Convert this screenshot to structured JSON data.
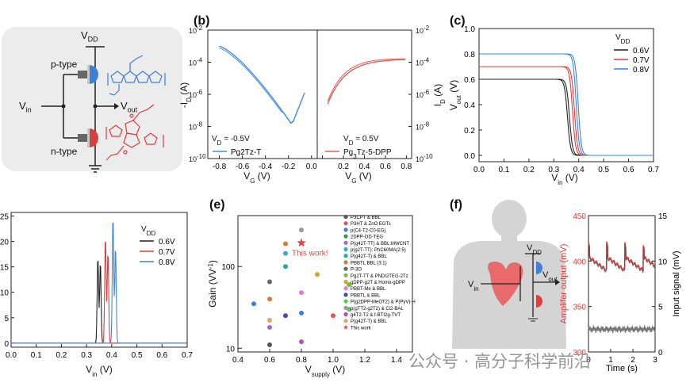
{
  "panel_a": {
    "vdd": "V",
    "vdd_sub": "DD",
    "ptype": "p-type",
    "ntype": "n-type",
    "vin": "V",
    "vin_sub": "in",
    "vout": "V",
    "vout_sub": "out"
  },
  "panel_b": {
    "label": "(b)",
    "left_legend": "Pg2Tz-T",
    "right_legend": "Pg",
    "right_legend_sub": "3",
    "right_legend_rest": "Tz-5-DPP",
    "left_vd": "V",
    "left_vd_sub": "D",
    "left_vd_val": " = -0.5V",
    "right_vd": "V",
    "right_vd_sub": "D",
    "right_vd_val": " = 0.5V",
    "ylabel_left": "-I",
    "ylabel_left_sub": "D",
    "ylabel_left_unit": " (A)",
    "ylabel_right": "I",
    "ylabel_right_sub": "D",
    "ylabel_right_unit": " (A)",
    "xlabel": "V",
    "xlabel_sub": "G",
    "xlabel_unit": " (V)",
    "xticks_left": [
      "-0.8",
      "-0.6",
      "-0.4",
      "-0.2",
      "0.0"
    ],
    "xticks_right": [
      "0.0",
      "0.2",
      "0.4",
      "0.6",
      "0.8"
    ],
    "yticks": [
      "10",
      "10",
      "10",
      "10",
      "10"
    ],
    "yticks_exp": [
      "-2",
      "-4",
      "-6",
      "-8",
      "-10"
    ],
    "colors": {
      "p": "#4a90d9",
      "n": "#e06060"
    }
  },
  "panel_c": {
    "label": "(c)",
    "ylabel": "V",
    "ylabel_sub": "out",
    "ylabel_unit": " (V)",
    "xlabel": "V",
    "xlabel_sub": "in",
    "xlabel_unit": " (V)",
    "legend_title": "V",
    "legend_title_sub": "DD",
    "legend": [
      "0.6V",
      "0.7V",
      "0.8V"
    ],
    "yticks": [
      "0.0",
      "0.2",
      "0.4",
      "0.6",
      "0.8",
      "1.0"
    ],
    "xticks": [
      "0.0",
      "0.1",
      "0.2",
      "0.3",
      "0.4",
      "0.5",
      "0.6",
      "0.7"
    ]
  },
  "panel_d": {
    "legend_title": "V",
    "legend_title_sub": "DD",
    "legend": [
      "0.6V",
      "0.7V",
      "0.8V"
    ],
    "yticks": [
      "25",
      "20",
      "15",
      "10",
      "5",
      "0"
    ],
    "xticks": [
      "0.0",
      "0.1",
      "0.2",
      "0.3",
      "0.4",
      "0.5",
      "0.6",
      "0.7"
    ],
    "xlabel": "V",
    "xlabel_sub": "in",
    "xlabel_unit": " (V)"
  },
  "panel_e": {
    "label": "(e)",
    "ylabel": "Gain (VV",
    "ylabel_sup": "-1",
    "ylabel_end": ")",
    "xlabel": "V",
    "xlabel_sub": "supply",
    "xlabel_unit": " (V)",
    "yticks": [
      "100",
      "10"
    ],
    "xticks": [
      "0.4",
      "0.6",
      "0.8",
      "1.0",
      "1.2",
      "1.4"
    ],
    "annotation": "This work!",
    "legend": [
      {
        "label": "P3CPT & BBL",
        "color": "#555555"
      },
      {
        "label": "P3HT & ZnO EGTs",
        "color": "#e05555"
      },
      {
        "label": "p(C4-T2-C0-EG)",
        "color": "#3a7fd0"
      },
      {
        "label": "2DPP-OD-TEG",
        "color": "#2e9a4a"
      },
      {
        "label": "P(g42T-TT) & BBL:MWCNT",
        "color": "#a06ad0"
      },
      {
        "label": "p(g2T-TT): PhC60MA(2:5)",
        "color": "#3aa8c8"
      },
      {
        "label": "P(g42T-T) & BBL",
        "color": "#2aa898"
      },
      {
        "label": "PBBTL BBL (3:1)",
        "color": "#d47a3a"
      },
      {
        "label": "P-3O",
        "color": "#666666"
      },
      {
        "label": "Pg2T-TT & PNDI2TEG-2Tz",
        "color": "#7bbd3a"
      },
      {
        "label": "gDPP-g2T & Homo-gDPP",
        "color": "#c8a83a"
      },
      {
        "label": "PBBT-Me & BBL",
        "color": "#e07ad8"
      },
      {
        "label": "PBBTL & BBL",
        "color": "#4a4aa8"
      },
      {
        "label": "P(g2DPP-MeOT2) & P(PyV)-H",
        "color": "#5ac85a"
      },
      {
        "label": "p(gTT2-g2T2) & Ci2-BAL",
        "color": "#999999"
      },
      {
        "label": "g4T2-T2 & f-BTI2g-TVT",
        "color": "#b84ac8"
      },
      {
        "label": "P(g42T-T) & BBL",
        "color": "#d8a860"
      },
      {
        "label": "This work",
        "color": "#d94a4a"
      }
    ],
    "points": [
      {
        "x": 0.6,
        "y": 11,
        "c": "#555555"
      },
      {
        "x": 0.6,
        "y": 18,
        "c": "#a06ad0"
      },
      {
        "x": 0.6,
        "y": 22,
        "c": "#d8a860"
      },
      {
        "x": 0.6,
        "y": 40,
        "c": "#d47a3a"
      },
      {
        "x": 0.6,
        "y": 65,
        "c": "#666666"
      },
      {
        "x": 0.5,
        "y": 35,
        "c": "#3a7fd0"
      },
      {
        "x": 0.7,
        "y": 25,
        "c": "#c8a83a"
      },
      {
        "x": 0.7,
        "y": 100,
        "c": "#2aa898"
      },
      {
        "x": 0.7,
        "y": 145,
        "c": "#3aa8c8"
      },
      {
        "x": 0.7,
        "y": 190,
        "c": "#d47a3a"
      },
      {
        "x": 0.8,
        "y": 12,
        "c": "#b84ac8"
      },
      {
        "x": 0.8,
        "y": 27,
        "c": "#3a7fd0"
      },
      {
        "x": 0.8,
        "y": 48,
        "c": "#e07ad8"
      },
      {
        "x": 0.8,
        "y": 280,
        "c": "#999999"
      },
      {
        "x": 0.9,
        "y": 80,
        "c": "#c8a83a"
      },
      {
        "x": 1.0,
        "y": 25,
        "c": "#e05555"
      },
      {
        "x": 1.1,
        "y": 30,
        "c": "#5ac85a"
      },
      {
        "x": 1.1,
        "y": 60,
        "c": "#7bbd3a"
      },
      {
        "x": 0.7,
        "y": 25,
        "c": "#4a4aa8"
      }
    ],
    "star": {
      "x": 0.8,
      "y": 195
    }
  },
  "panel_f": {
    "label": "(f)",
    "vdd": "V",
    "vdd_sub": "DD",
    "vin": "V",
    "vin_sub": "in",
    "vout": "V",
    "vout_sub": "out",
    "ylabel_left": "Amplifer output (mV)",
    "ylabel_right": "Input signal (mV)",
    "xlabel": "Time (s)",
    "yticks_left": [
      "450",
      "400",
      "350",
      "300"
    ],
    "yticks_right": [
      "15",
      "10",
      "5",
      "0"
    ],
    "xticks": [
      "0",
      "1",
      "2",
      "3"
    ]
  },
  "watermark": "公众号 · 高分子科学前沿"
}
